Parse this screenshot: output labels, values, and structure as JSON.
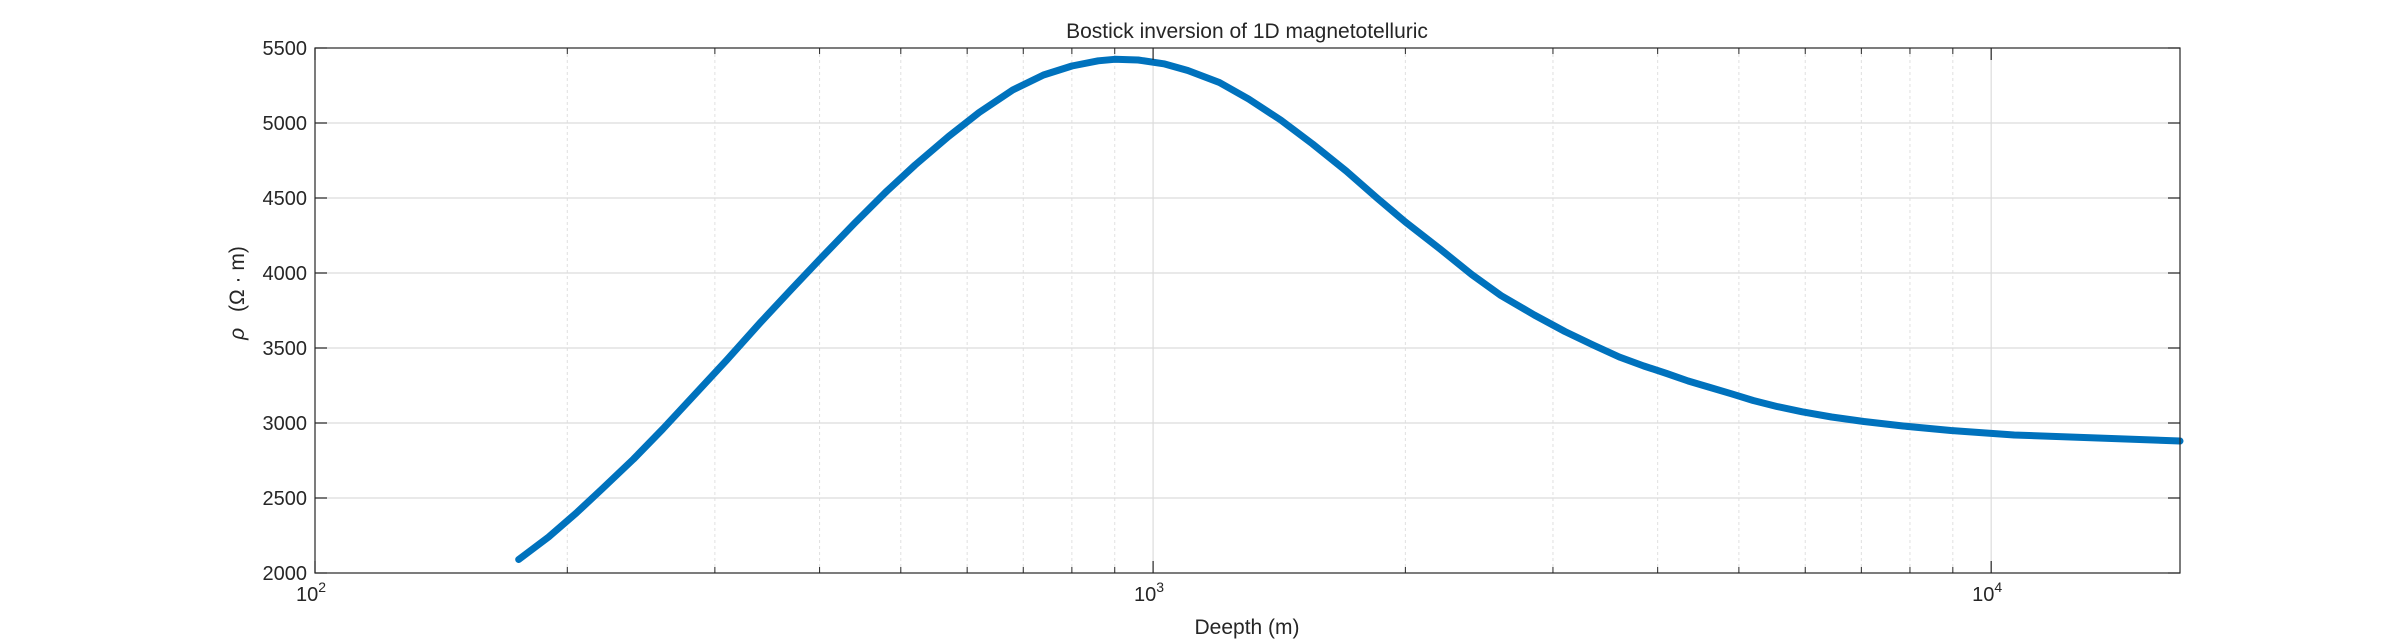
{
  "chart_data": {
    "type": "line",
    "title": "Bostick inversion of 1D magnetotelluric",
    "xlabel": "Deepth (m)",
    "ylabel": "ρ (Ω · m)",
    "ylabel_symbol": "ρ",
    "ylabel_unit": "(Ω · m)",
    "x_scale": "log",
    "xlim": [
      100,
      16800
    ],
    "ylim": [
      2000,
      5500
    ],
    "grid": true,
    "minor_grid": true,
    "x_ticks": [
      {
        "base": "10",
        "exp": "2"
      },
      {
        "base": "10",
        "exp": "3"
      },
      {
        "base": "10",
        "exp": "4"
      }
    ],
    "y_ticks": [
      "2000",
      "2500",
      "3000",
      "3500",
      "4000",
      "4500",
      "5000",
      "5500"
    ],
    "line_color": "#0072BD",
    "marker": "point",
    "series": [
      {
        "x": [
          175,
          190,
          205,
          220,
          240,
          260,
          285,
          310,
          340,
          370,
          400,
          440,
          480,
          520,
          570,
          620,
          680,
          740,
          800,
          860,
          900,
          960,
          1030,
          1100,
          1200,
          1300,
          1420,
          1550,
          1700,
          1850,
          2000,
          2200,
          2400,
          2600,
          2850,
          3100,
          3350,
          3600,
          3850,
          4100,
          4350,
          4600,
          4900,
          5200,
          5550,
          5950,
          6450,
          7050,
          7850,
          8950,
          10650,
          16800
        ],
        "y": [
          2090,
          2240,
          2400,
          2560,
          2760,
          2960,
          3200,
          3420,
          3670,
          3890,
          4090,
          4330,
          4540,
          4720,
          4910,
          5070,
          5220,
          5320,
          5380,
          5415,
          5425,
          5420,
          5395,
          5350,
          5270,
          5160,
          5020,
          4860,
          4680,
          4500,
          4340,
          4160,
          3990,
          3850,
          3720,
          3610,
          3520,
          3440,
          3380,
          3330,
          3280,
          3240,
          3195,
          3150,
          3110,
          3075,
          3040,
          3010,
          2980,
          2950,
          2920,
          2880
        ]
      }
    ]
  }
}
